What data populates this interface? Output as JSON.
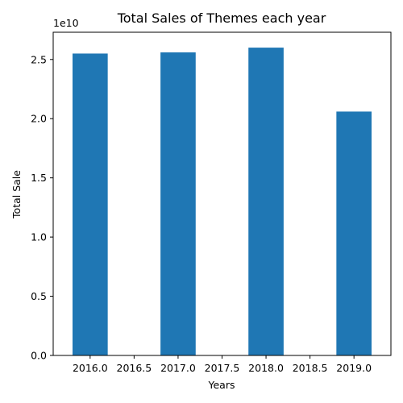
{
  "chart_data": {
    "type": "bar",
    "title": "Total Sales of Themes each year",
    "xlabel": "Years",
    "ylabel": "Total Sale",
    "y_offset_label": "1e10",
    "y_scale": 10000000000,
    "x": [
      2016,
      2017,
      2018,
      2019
    ],
    "values": [
      25500000000,
      25600000000,
      26000000000,
      20600000000
    ],
    "bar_width": 0.4,
    "xlim": [
      2015.58,
      2019.42
    ],
    "ylim": [
      0,
      27300000000
    ],
    "x_ticks": [
      2016.0,
      2016.5,
      2017.0,
      2017.5,
      2018.0,
      2018.5,
      2019.0
    ],
    "x_tick_labels": [
      "2016.0",
      "2016.5",
      "2017.0",
      "2017.5",
      "2018.0",
      "2018.5",
      "2019.0"
    ],
    "y_ticks": [
      0,
      5000000000,
      10000000000,
      15000000000,
      20000000000,
      25000000000
    ],
    "y_tick_labels": [
      "0.0",
      "0.5",
      "1.0",
      "1.5",
      "2.0",
      "2.5"
    ],
    "grid": false,
    "legend": "none",
    "bar_color": "#1f77b4"
  }
}
